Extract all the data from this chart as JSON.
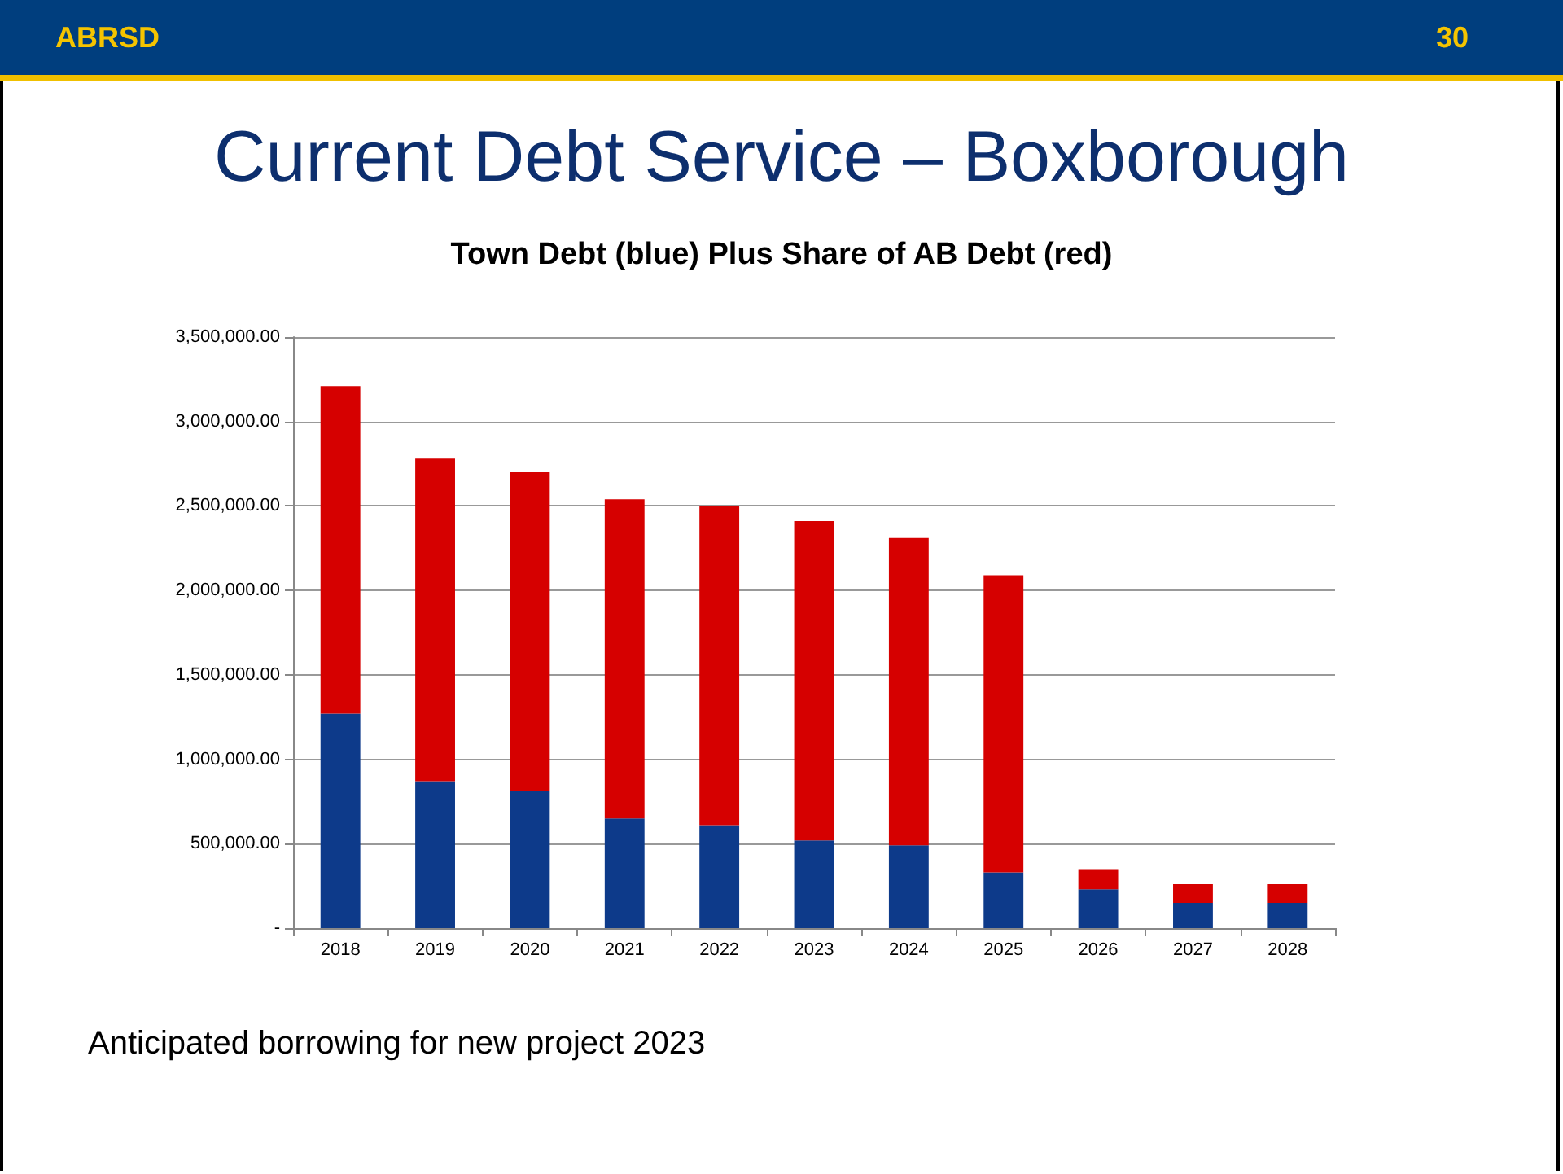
{
  "chart_data": {
    "type": "bar",
    "title": "Current Debt Service – Boxborough",
    "subtitle": "Town Debt (blue) Plus Share of AB Debt (red)",
    "annotations": [
      "ABRSD",
      "30",
      "Anticipated borrowing for new project 2023"
    ],
    "categories": [
      "2018",
      "2019",
      "2020",
      "2021",
      "2022",
      "2023",
      "2024",
      "2025",
      "2026",
      "2027",
      "2028"
    ],
    "stacked": true,
    "series": [
      {
        "color": "#0d3a8a",
        "values": [
          1270000,
          870000,
          810000,
          650000,
          610000,
          520000,
          490000,
          330000,
          230000,
          150000,
          150000
        ]
      },
      {
        "color": "#d60000",
        "values": [
          1940000,
          1910000,
          1890000,
          1890000,
          1890000,
          1890000,
          1820000,
          1760000,
          120000,
          110000,
          110000
        ]
      }
    ],
    "ylim": [
      0,
      3500000
    ],
    "yticks": [
      {
        "value": 0,
        "label": "-"
      },
      {
        "value": 500000,
        "label": "500,000.00"
      },
      {
        "value": 1000000,
        "label": "1,000,000.00"
      },
      {
        "value": 1500000,
        "label": "1,500,000.00"
      },
      {
        "value": 2000000,
        "label": "2,000,000.00"
      },
      {
        "value": 2500000,
        "label": "2,500,000.00"
      },
      {
        "value": 3000000,
        "label": "3,000,000.00"
      },
      {
        "value": 3500000,
        "label": "3,500,000.00"
      }
    ],
    "grid": "y"
  }
}
